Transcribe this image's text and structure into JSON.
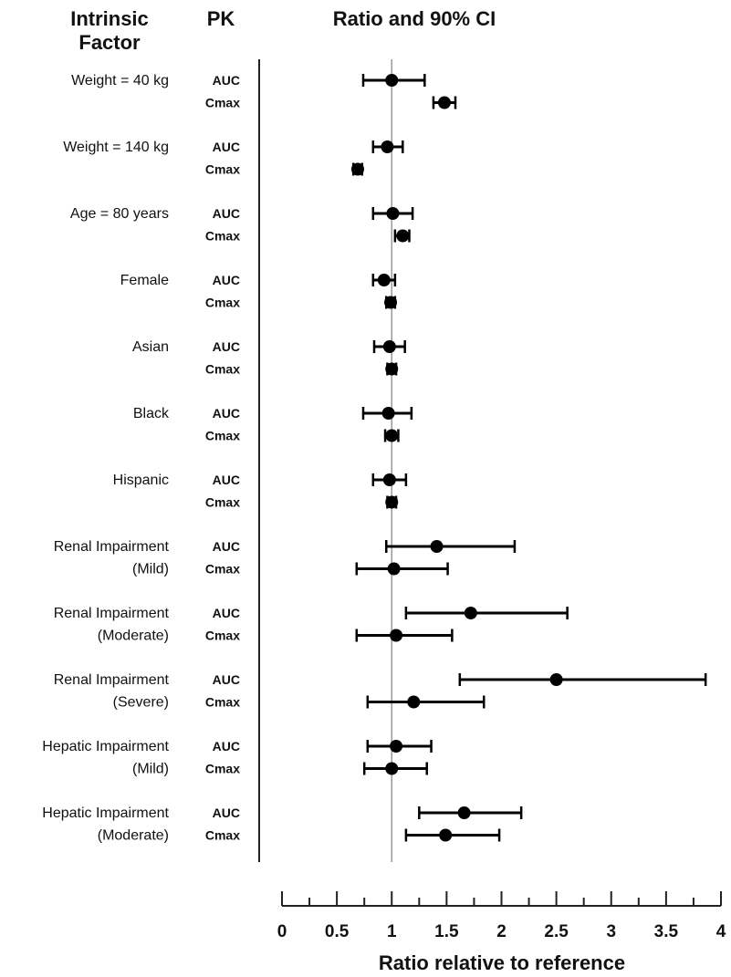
{
  "chart_data": {
    "type": "forest",
    "headers": {
      "factor_line1": "Intrinsic",
      "factor_line2": "Factor",
      "pk": "PK",
      "plot": "Ratio and 90% CI"
    },
    "xlabel": "Ratio relative to reference",
    "xlim": [
      0,
      4
    ],
    "xticks": [
      "0",
      "0.5",
      "1",
      "1.5",
      "2",
      "2.5",
      "3",
      "3.5",
      "4"
    ],
    "minor_ticks": true,
    "reference_line": 1,
    "groups": [
      {
        "label": [
          "Weight = 40 kg"
        ],
        "rows": [
          {
            "pk": "AUC",
            "ratio": 1.0,
            "lower": 0.74,
            "upper": 1.3
          },
          {
            "pk": "Cmax",
            "ratio": 1.48,
            "lower": 1.38,
            "upper": 1.58
          }
        ]
      },
      {
        "label": [
          "Weight = 140 kg"
        ],
        "rows": [
          {
            "pk": "AUC",
            "ratio": 0.96,
            "lower": 0.83,
            "upper": 1.1
          },
          {
            "pk": "Cmax",
            "ratio": 0.69,
            "lower": 0.65,
            "upper": 0.73
          }
        ]
      },
      {
        "label": [
          "Age = 80 years"
        ],
        "rows": [
          {
            "pk": "AUC",
            "ratio": 1.01,
            "lower": 0.83,
            "upper": 1.19
          },
          {
            "pk": "Cmax",
            "ratio": 1.1,
            "lower": 1.03,
            "upper": 1.16
          }
        ]
      },
      {
        "label": [
          "Female"
        ],
        "rows": [
          {
            "pk": "AUC",
            "ratio": 0.93,
            "lower": 0.83,
            "upper": 1.03
          },
          {
            "pk": "Cmax",
            "ratio": 0.99,
            "lower": 0.95,
            "upper": 1.03
          }
        ]
      },
      {
        "label": [
          "Asian"
        ],
        "rows": [
          {
            "pk": "AUC",
            "ratio": 0.98,
            "lower": 0.84,
            "upper": 1.12
          },
          {
            "pk": "Cmax",
            "ratio": 1.0,
            "lower": 0.96,
            "upper": 1.04
          }
        ]
      },
      {
        "label": [
          "Black"
        ],
        "rows": [
          {
            "pk": "AUC",
            "ratio": 0.97,
            "lower": 0.74,
            "upper": 1.18
          },
          {
            "pk": "Cmax",
            "ratio": 1.0,
            "lower": 0.94,
            "upper": 1.06
          }
        ]
      },
      {
        "label": [
          "Hispanic"
        ],
        "rows": [
          {
            "pk": "AUC",
            "ratio": 0.98,
            "lower": 0.83,
            "upper": 1.13
          },
          {
            "pk": "Cmax",
            "ratio": 1.0,
            "lower": 0.96,
            "upper": 1.04
          }
        ]
      },
      {
        "label": [
          "Renal Impairment",
          "(Mild)"
        ],
        "rows": [
          {
            "pk": "AUC",
            "ratio": 1.41,
            "lower": 0.95,
            "upper": 2.12
          },
          {
            "pk": "Cmax",
            "ratio": 1.02,
            "lower": 0.68,
            "upper": 1.51
          }
        ]
      },
      {
        "label": [
          "Renal Impairment",
          "(Moderate)"
        ],
        "rows": [
          {
            "pk": "AUC",
            "ratio": 1.72,
            "lower": 1.13,
            "upper": 2.6
          },
          {
            "pk": "Cmax",
            "ratio": 1.04,
            "lower": 0.68,
            "upper": 1.55
          }
        ]
      },
      {
        "label": [
          "Renal Impairment",
          "(Severe)"
        ],
        "rows": [
          {
            "pk": "AUC",
            "ratio": 2.5,
            "lower": 1.62,
            "upper": 3.86
          },
          {
            "pk": "Cmax",
            "ratio": 1.2,
            "lower": 0.78,
            "upper": 1.84
          }
        ]
      },
      {
        "label": [
          "Hepatic Impairment",
          "(Mild)"
        ],
        "rows": [
          {
            "pk": "AUC",
            "ratio": 1.04,
            "lower": 0.78,
            "upper": 1.36
          },
          {
            "pk": "Cmax",
            "ratio": 1.0,
            "lower": 0.75,
            "upper": 1.32
          }
        ]
      },
      {
        "label": [
          "Hepatic Impairment",
          "(Moderate)"
        ],
        "rows": [
          {
            "pk": "AUC",
            "ratio": 1.66,
            "lower": 1.25,
            "upper": 2.18
          },
          {
            "pk": "Cmax",
            "ratio": 1.49,
            "lower": 1.13,
            "upper": 1.98
          }
        ]
      }
    ]
  }
}
